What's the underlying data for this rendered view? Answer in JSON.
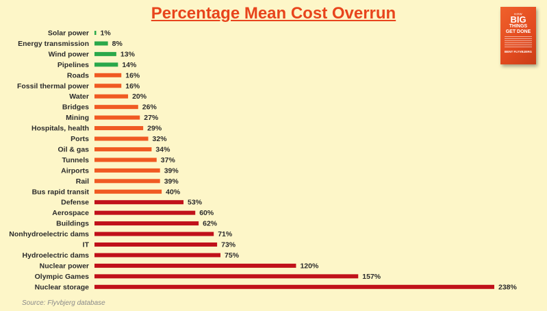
{
  "chart_data": {
    "type": "bar",
    "orientation": "horizontal",
    "title": "Percentage Mean Cost Overrun",
    "source": "Source: Flyvbjerg database",
    "value_suffix": "%",
    "xlim": [
      0,
      238
    ],
    "grid": false,
    "categories": [
      "Solar power",
      "Energy transmission",
      "Wind power",
      "Pipelines",
      "Roads",
      "Fossil thermal power",
      "Water",
      "Bridges",
      "Mining",
      "Hospitals, health",
      "Ports",
      "Oil & gas",
      "Tunnels",
      "Airports",
      "Rail",
      "Bus rapid transit",
      "Defense",
      "Aerospace",
      "Buildings",
      "Nonhydroelectric dams",
      "IT",
      "Hydroelectric dams",
      "Nuclear power",
      "Olympic Games",
      "Nuclear storage"
    ],
    "values": [
      1,
      8,
      13,
      14,
      16,
      16,
      20,
      26,
      27,
      29,
      32,
      34,
      37,
      39,
      39,
      40,
      53,
      60,
      62,
      71,
      73,
      75,
      120,
      157,
      238
    ],
    "colors": {
      "low": "#2aa84a",
      "mid": "#f05a22",
      "high": "#c0111a"
    },
    "color_groups": [
      "low",
      "low",
      "low",
      "low",
      "mid",
      "mid",
      "mid",
      "mid",
      "mid",
      "mid",
      "mid",
      "mid",
      "mid",
      "mid",
      "mid",
      "mid",
      "high",
      "high",
      "high",
      "high",
      "high",
      "high",
      "high",
      "high",
      "high"
    ]
  },
  "book": {
    "line1": "HOW",
    "line2": "BIG",
    "line3": "THINGS",
    "line4": "GET DONE",
    "authors": "BENT FLYVBJERG"
  }
}
